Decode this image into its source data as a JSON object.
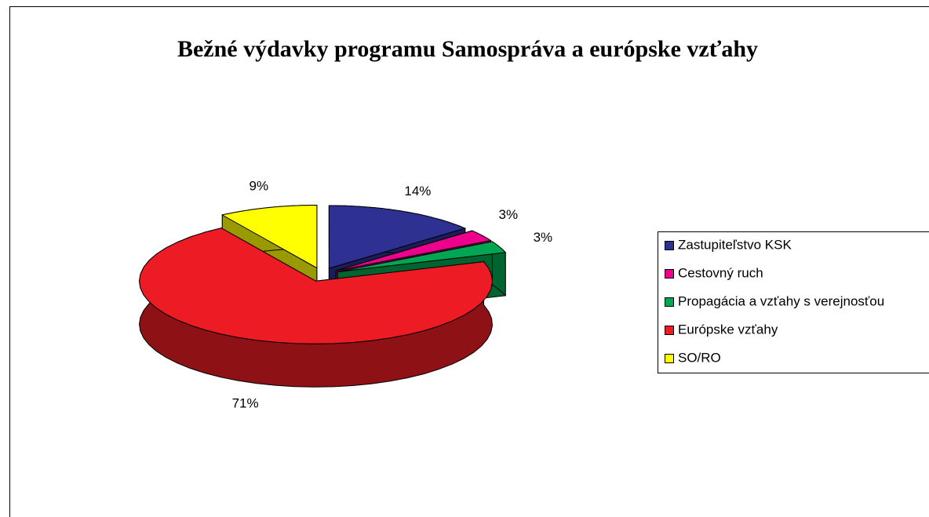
{
  "chart_data": {
    "type": "pie",
    "title": "Bežné výdavky programu Samospráva a európske vzťahy",
    "categories": [
      "Zastupiteľstvo KSK",
      "Cestovný ruch",
      "Propagácia a vzťahy s verejnosťou",
      "Európske vzťahy",
      "SO/RO"
    ],
    "values": [
      14,
      3,
      3,
      71,
      9
    ],
    "value_labels": [
      "14%",
      "3%",
      "3%",
      "71%",
      "9%"
    ],
    "colors": [
      "#2e3192",
      "#ec008c",
      "#00a651",
      "#ed1c24",
      "#ffff00"
    ],
    "legend": "right",
    "three_d": true,
    "exploded": true
  }
}
